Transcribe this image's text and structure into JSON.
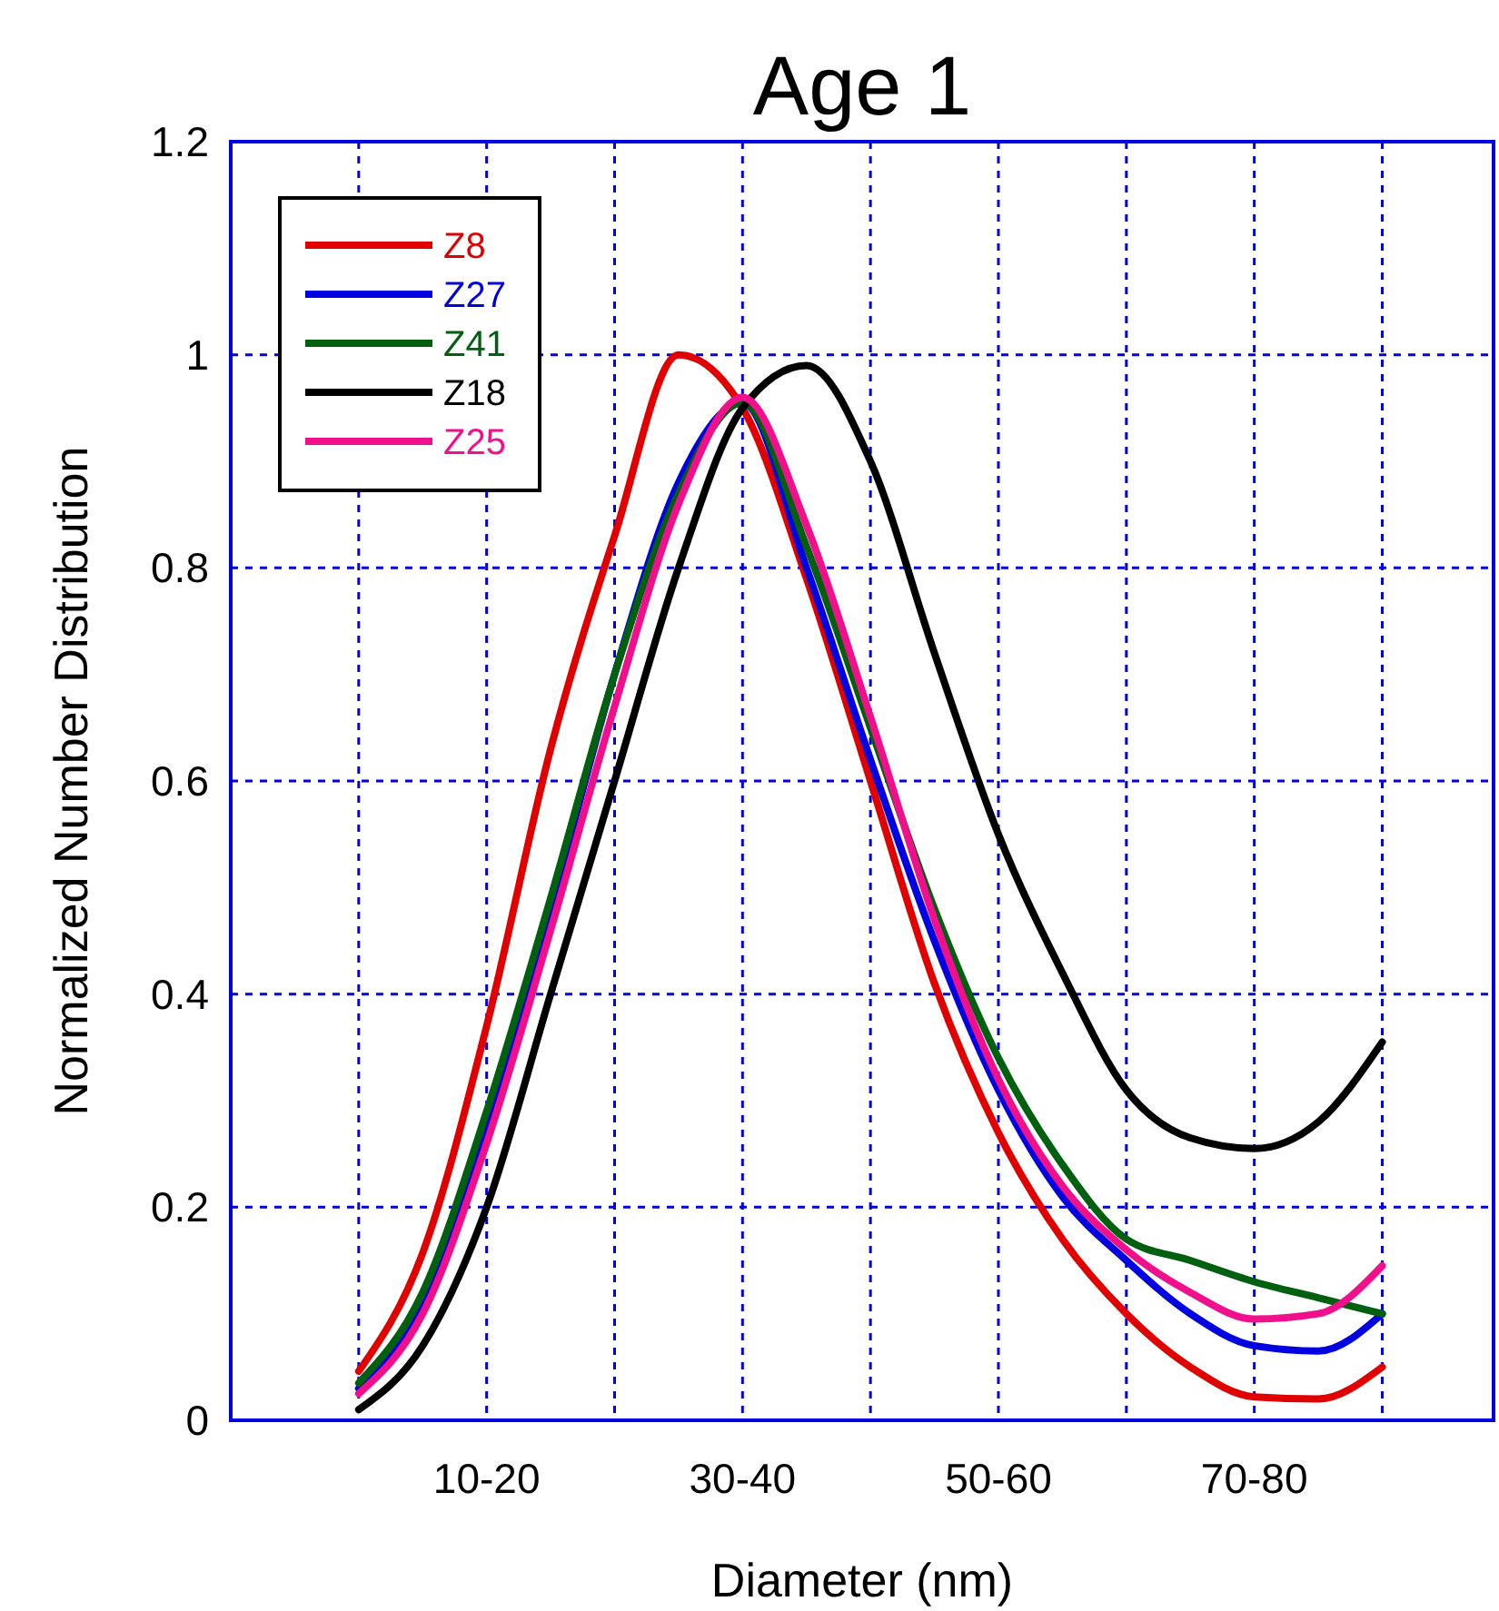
{
  "chart_data": {
    "type": "line",
    "title": "Age 1",
    "xlabel": "Diameter (nm)",
    "ylabel": "Normalized Number Distribution",
    "categories": [
      null,
      null,
      "10-20",
      null,
      null,
      null,
      "30-40",
      null,
      null,
      null,
      "50-60",
      null,
      null,
      null,
      "70-80",
      null,
      null
    ],
    "series": [
      {
        "name": "Z8",
        "color": "#e00000",
        "values": [
          0.046,
          0.157,
          0.37,
          0.63,
          0.83,
          1.0,
          0.95,
          0.79,
          0.6,
          0.41,
          0.27,
          0.17,
          0.1,
          0.05,
          0.022,
          0.02,
          0.05
        ]
      },
      {
        "name": "Z27",
        "color": "#0000e0",
        "values": [
          0.03,
          0.11,
          0.28,
          0.48,
          0.7,
          0.88,
          0.955,
          0.8,
          0.62,
          0.45,
          0.31,
          0.21,
          0.15,
          0.1,
          0.07,
          0.065,
          0.1
        ]
      },
      {
        "name": "Z41",
        "color": "#006010",
        "values": [
          0.035,
          0.12,
          0.29,
          0.49,
          0.7,
          0.87,
          0.955,
          0.82,
          0.65,
          0.48,
          0.34,
          0.24,
          0.17,
          0.15,
          0.13,
          0.115,
          0.1
        ]
      },
      {
        "name": "Z18",
        "color": "#000000",
        "values": [
          0.01,
          0.07,
          0.2,
          0.4,
          0.6,
          0.8,
          0.95,
          0.99,
          0.9,
          0.72,
          0.55,
          0.42,
          0.31,
          0.265,
          0.255,
          0.28,
          0.355
        ]
      },
      {
        "name": "Z25",
        "color": "#f0108c",
        "values": [
          0.025,
          0.1,
          0.26,
          0.46,
          0.67,
          0.86,
          0.96,
          0.84,
          0.66,
          0.47,
          0.32,
          0.22,
          0.16,
          0.12,
          0.095,
          0.1,
          0.145
        ]
      }
    ],
    "ylim": [
      0,
      1.2
    ],
    "yticks": [
      0,
      0.2,
      0.4,
      0.6,
      0.8,
      1,
      1.2
    ],
    "grid": true,
    "legend": "top left",
    "line_style": "solid",
    "marker": "none"
  }
}
